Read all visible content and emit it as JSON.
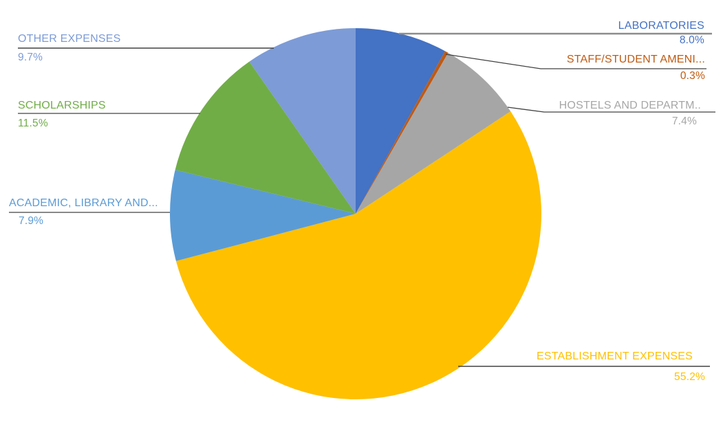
{
  "chart_data": {
    "type": "pie",
    "title": "",
    "legend_position": "none",
    "start_angle_deg": 0,
    "direction": "clockwise",
    "labels_style": "callout-with-percentage",
    "points": [
      {
        "label": "LABORATORIES",
        "value": 8.0,
        "display": "8.0%",
        "color": "#4472C4"
      },
      {
        "label": "STAFF/STUDENT AMENI...",
        "value": 0.3,
        "display": "0.3%",
        "color": "#C05A11"
      },
      {
        "label": "HOSTELS AND DEPARTM..",
        "value": 7.4,
        "display": "7.4%",
        "color": "#A6A6A6"
      },
      {
        "label": "ESTABLISHMENT EXPENSES",
        "value": 55.2,
        "display": "55.2%",
        "color": "#FFC000"
      },
      {
        "label": "ACADEMIC, LIBRARY AND...",
        "value": 7.9,
        "display": "7.9%",
        "color": "#5B9BD5"
      },
      {
        "label": "SCHOLARSHIPS",
        "value": 11.5,
        "display": "11.5%",
        "color": "#70AD47"
      },
      {
        "label": "OTHER EXPENSES",
        "value": 9.7,
        "display": "9.7%",
        "color": "#7D9BD6"
      }
    ],
    "style": {
      "leader_line_color": "#404040",
      "laboratories_leader_line_color": "#8C8C8C",
      "background_color": "#FFFFFF"
    }
  }
}
